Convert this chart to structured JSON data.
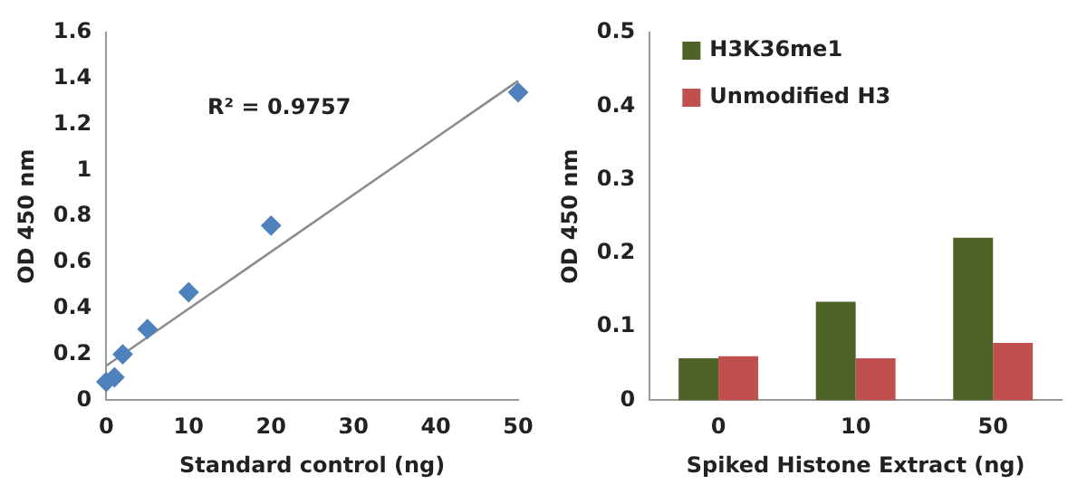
{
  "chart_data": [
    {
      "type": "scatter",
      "xlabel": "Standard control (ng)",
      "ylabel": "OD 450 nm",
      "annotations": [
        "R² = 0.9757"
      ],
      "marker": "diamond",
      "grid": false,
      "legend": false,
      "series": [
        {
          "color": "#4f81bd",
          "x": [
            0,
            1,
            2,
            5,
            10,
            20,
            50
          ],
          "values": [
            0.08,
            0.1,
            0.2,
            0.31,
            0.47,
            0.76,
            1.34
          ]
        },
        {
          "type": "line",
          "marker": "none",
          "color": "#8c8c8c",
          "x": [
            0,
            50
          ],
          "values": [
            0.15,
            1.39
          ]
        }
      ],
      "xlim": [
        0,
        50
      ],
      "xticks": [
        0,
        10,
        20,
        30,
        40,
        50
      ],
      "ylim": [
        0,
        1.6
      ],
      "yticks": [
        0,
        0.2,
        0.4,
        0.6,
        0.8,
        1,
        1.2,
        1.4,
        1.6
      ]
    },
    {
      "type": "bar",
      "xlabel": "Spiked Histone Extract (ng)",
      "ylabel": "OD 450 nm",
      "categories": [
        "0",
        "10",
        "50"
      ],
      "grid": false,
      "legend": "top left",
      "series": [
        {
          "name": "H3K36me1",
          "color": "#4f6228",
          "values": [
            0.057,
            0.134,
            0.221
          ]
        },
        {
          "name": "Unmodified H3",
          "color": "#c0504d",
          "values": [
            0.06,
            0.057,
            0.078
          ]
        }
      ],
      "ylim": [
        0,
        0.5
      ],
      "yticks": [
        0,
        0.1,
        0.2,
        0.3,
        0.4,
        0.5
      ]
    }
  ]
}
